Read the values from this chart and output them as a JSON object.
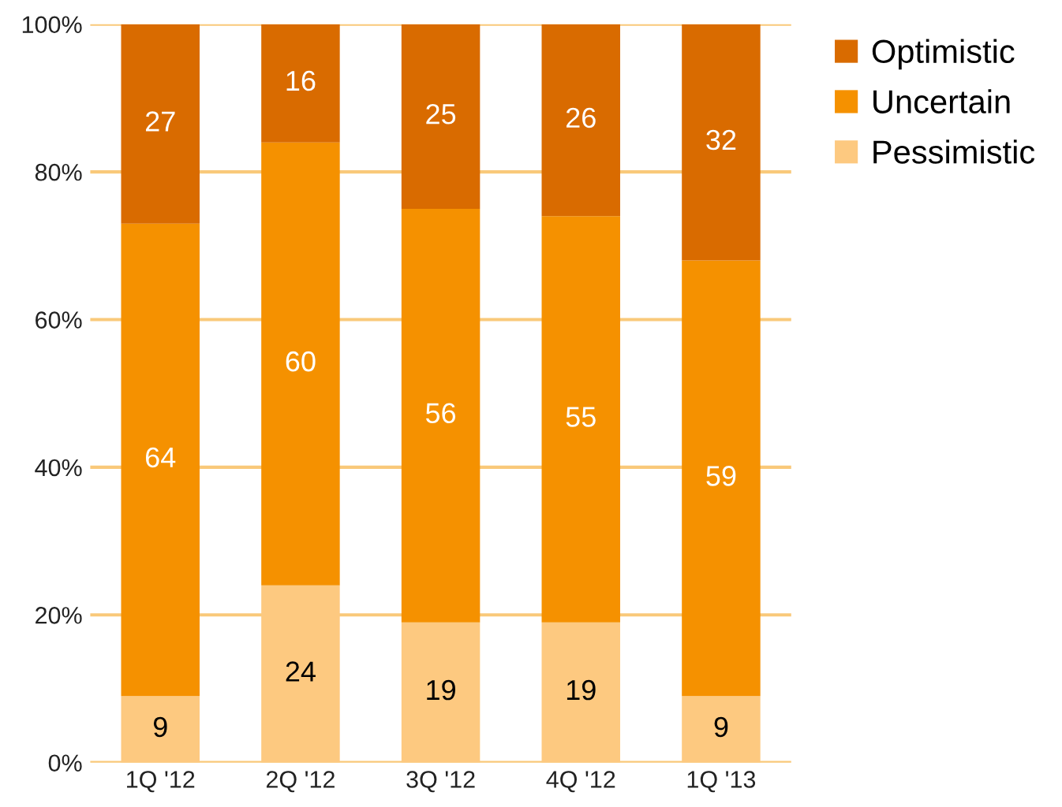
{
  "chart_data": {
    "type": "bar",
    "stacked": true,
    "categories": [
      "1Q '12",
      "2Q '12",
      "3Q '12",
      "4Q '12",
      "1Q '13"
    ],
    "series": [
      {
        "name": "Pessimistic",
        "color": "#fdc980",
        "values": [
          9,
          24,
          19,
          19,
          9
        ]
      },
      {
        "name": "Uncertain",
        "color": "#f59100",
        "values": [
          64,
          60,
          56,
          55,
          59
        ]
      },
      {
        "name": "Optimistic",
        "color": "#d96b00",
        "values": [
          27,
          16,
          25,
          26,
          32
        ]
      }
    ],
    "ylim": [
      0,
      100
    ],
    "yticks": [
      {
        "value": 0,
        "label": "0%"
      },
      {
        "value": 20,
        "label": "20%"
      },
      {
        "value": 40,
        "label": "40%"
      },
      {
        "value": 60,
        "label": "60%"
      },
      {
        "value": 80,
        "label": "80%"
      },
      {
        "value": 100,
        "label": "100%"
      }
    ],
    "grid": "y",
    "legend": "top right",
    "data_labels": true
  }
}
